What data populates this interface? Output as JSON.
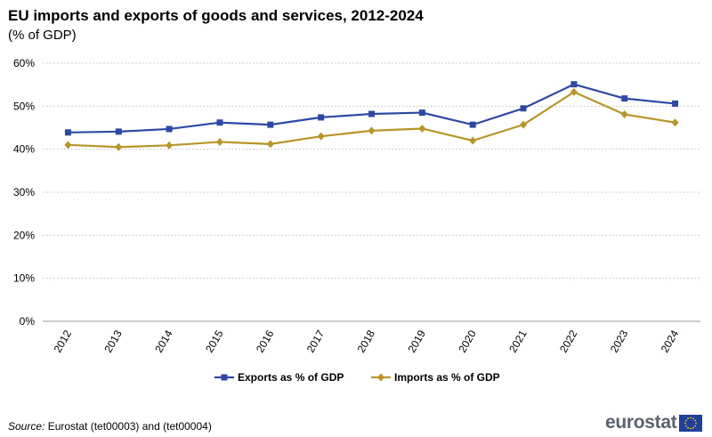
{
  "header": {
    "title": "EU imports and exports of goods and services, 2012-2024",
    "subtitle": "(% of GDP)"
  },
  "footer": {
    "source_label": "Source:",
    "source_text": " Eurostat (tet00003) and (tet00004)",
    "logo_text": "eurostat"
  },
  "colors": {
    "exports": "#2e48a4",
    "imports": "#b8952a",
    "grid": "#cccccc",
    "axis": "#999999"
  },
  "chart_data": {
    "type": "line",
    "title": "EU imports and exports of goods and services, 2012-2024",
    "subtitle": "(% of GDP)",
    "xlabel": "",
    "ylabel": "",
    "ylim": [
      0,
      60
    ],
    "yticks": [
      0,
      10,
      20,
      30,
      40,
      50,
      60
    ],
    "ytick_labels": [
      "0%",
      "10%",
      "20%",
      "30%",
      "40%",
      "50%",
      "60%"
    ],
    "grid": true,
    "legend_position": "bottom-center",
    "categories": [
      "2012",
      "2013",
      "2014",
      "2015",
      "2016",
      "2017",
      "2018",
      "2019",
      "2020",
      "2021",
      "2022",
      "2023",
      "2024"
    ],
    "series": [
      {
        "name": "Exports as % of GDP",
        "marker": "square",
        "values": [
          43.9,
          44.1,
          44.7,
          46.2,
          45.7,
          47.4,
          48.2,
          48.5,
          45.7,
          49.5,
          55.1,
          51.8,
          50.6
        ]
      },
      {
        "name": "Imports as % of GDP",
        "marker": "diamond",
        "values": [
          41.0,
          40.5,
          40.9,
          41.7,
          41.2,
          43.0,
          44.3,
          44.8,
          42.0,
          45.7,
          53.3,
          48.1,
          46.2
        ]
      }
    ]
  }
}
